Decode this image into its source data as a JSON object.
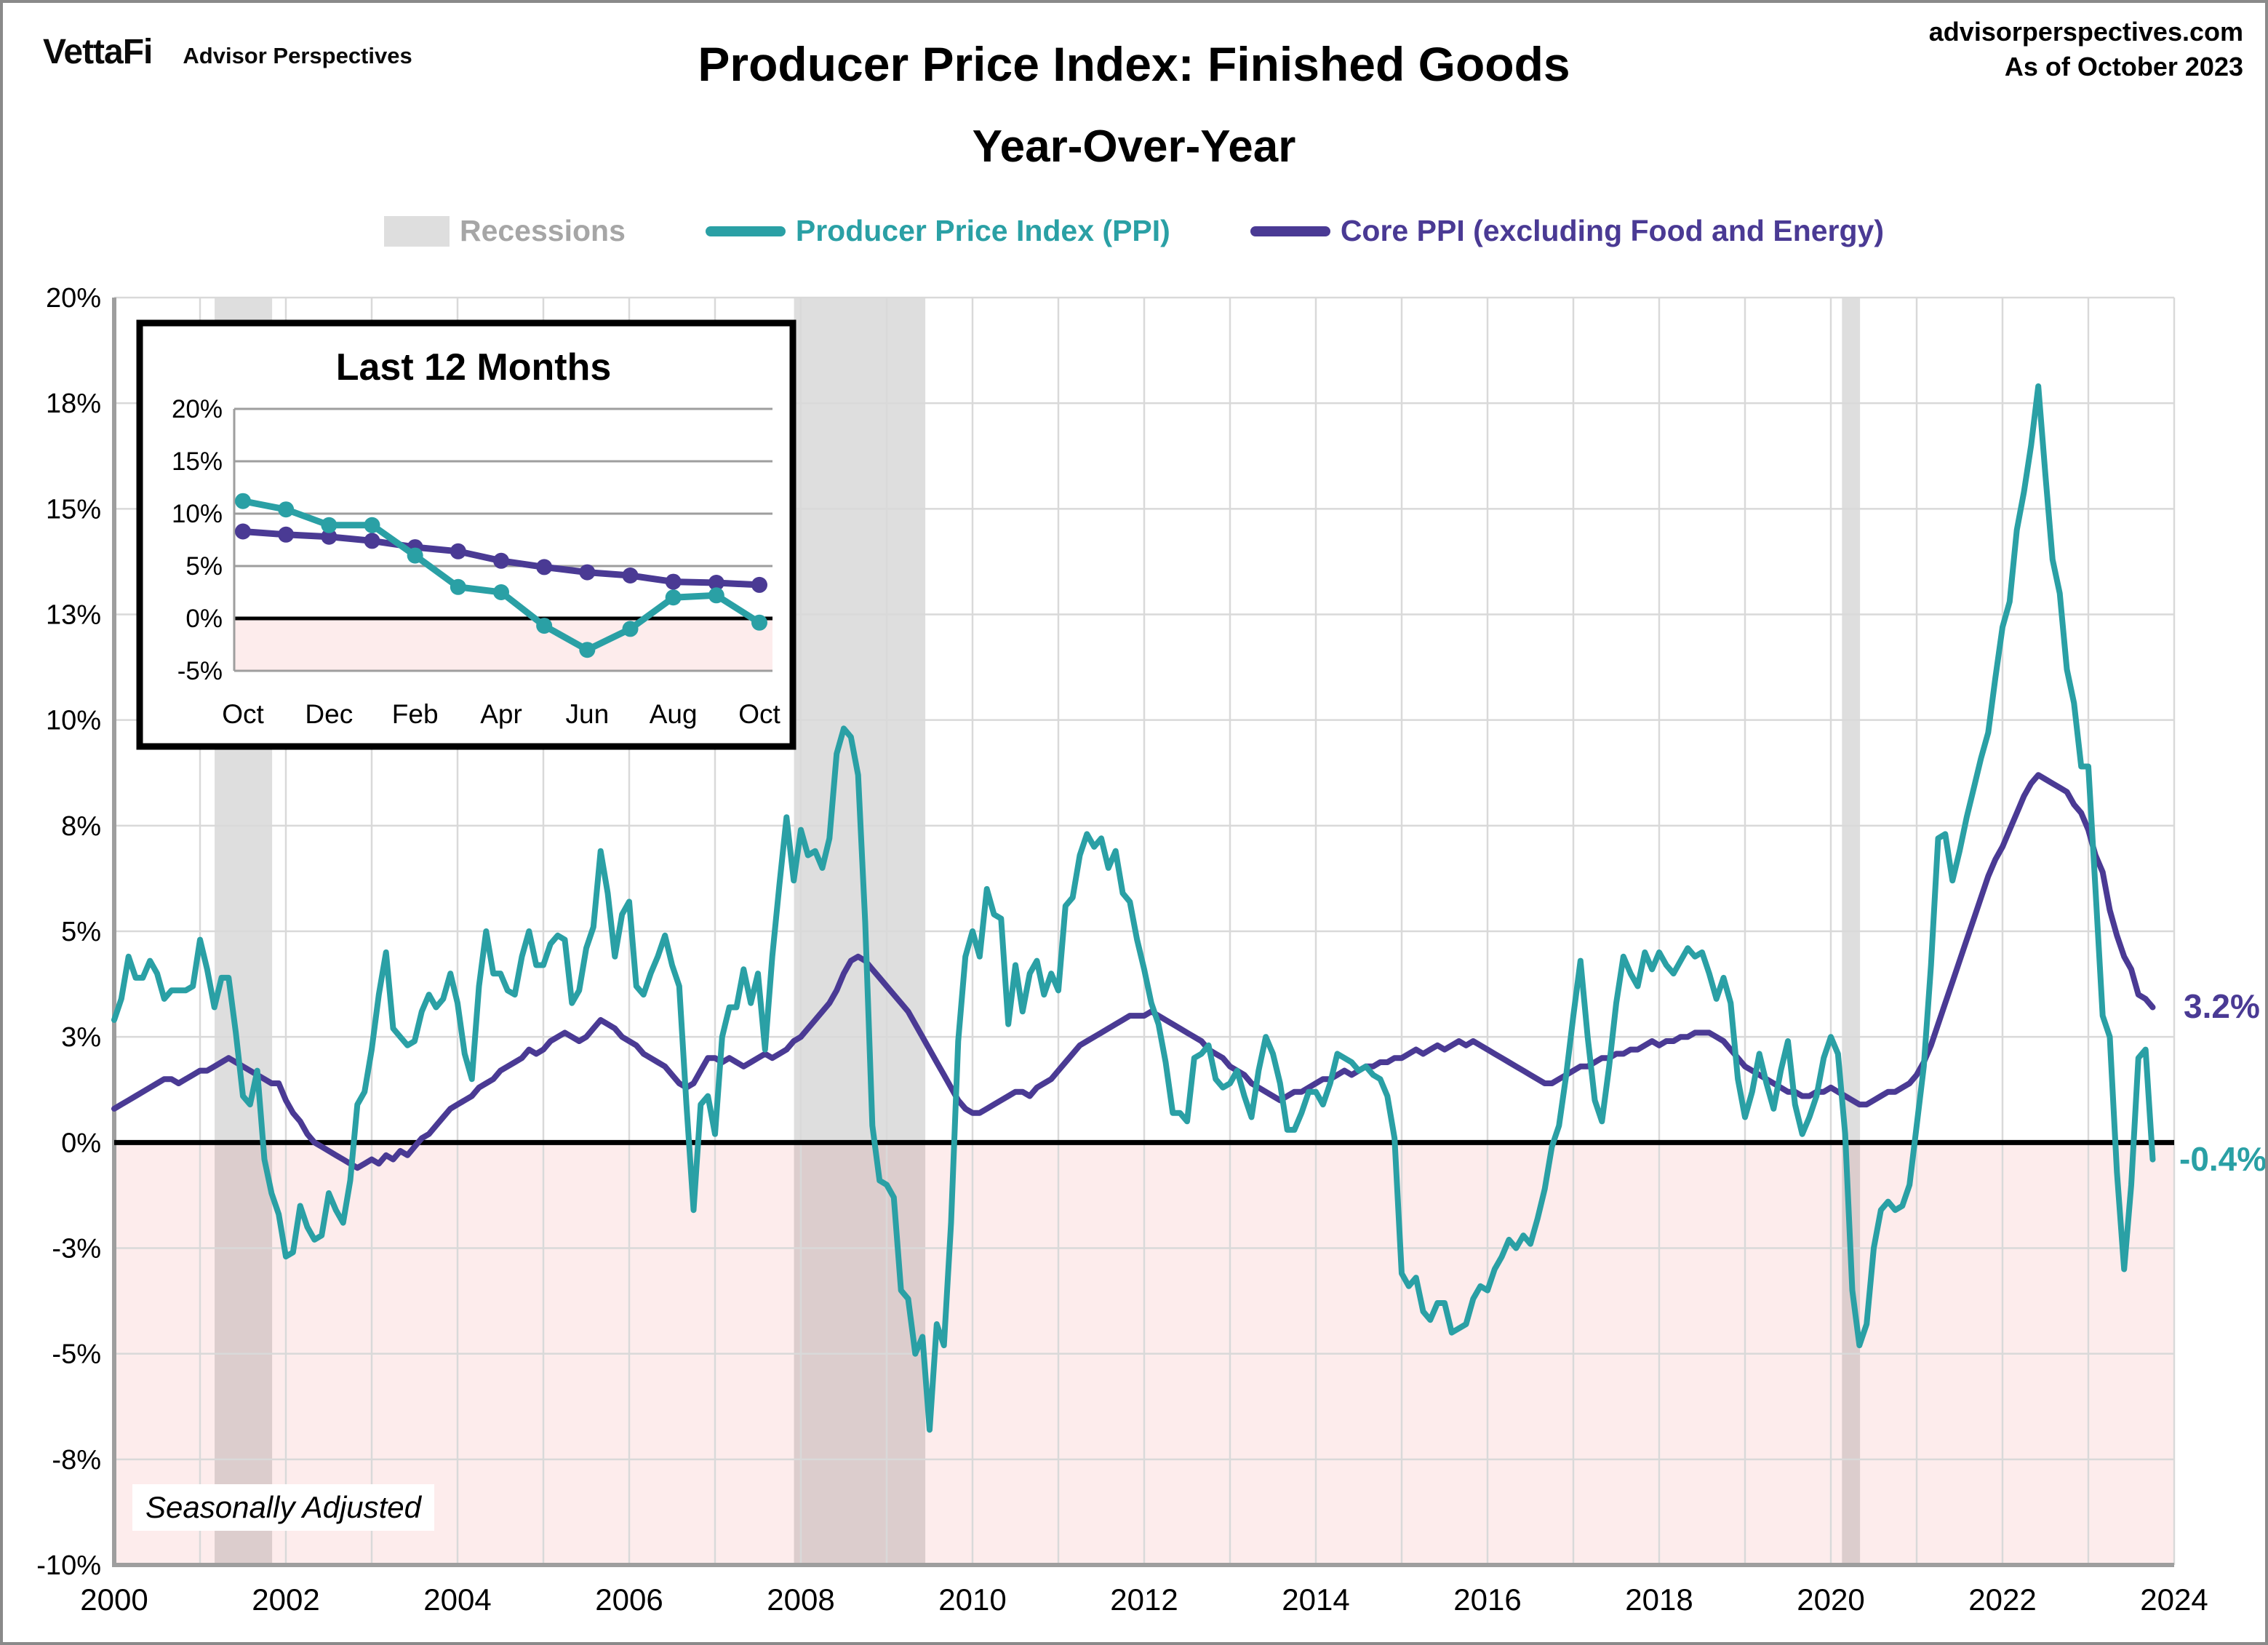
{
  "header": {
    "logo": "VettaFi",
    "logo_sub": "Advisor Perspectives",
    "title_line1": "Producer Price Index: Finished Goods",
    "title_line2": "Year-Over-Year",
    "source": "advisorperspectives.com",
    "as_of": "As of October 2023"
  },
  "legend": {
    "recessions_label": "Recessions",
    "ppi_label": "Producer Price Index (PPI)",
    "core_label": "Core PPI (excluding Food and Energy)"
  },
  "annotations": {
    "core_label": "3.2%",
    "ppi_label": "-0.4%"
  },
  "footnote": {
    "text": "Seasonally Adjusted"
  },
  "colors": {
    "ppi_teal": "#2AA0A5",
    "core_purple": "#4A3A94",
    "recession_gray": "#DEDEDE",
    "negative_pink": "#FDECEC",
    "grid": "#D9D9D9",
    "axis": "#9E9E9E",
    "zero_line": "#000000",
    "legend_gray_text": "#A6A6A6"
  },
  "chart_data": {
    "type": "line",
    "title": "Producer Price Index: Finished Goods Year-Over-Year",
    "xlabel": "",
    "ylabel": "",
    "grid": true,
    "legend_position": "top",
    "xlim": [
      2000,
      2024
    ],
    "ylim": [
      -10,
      20
    ],
    "x_unit": "monthly, Jan 2000 - Oct 2023",
    "x_ticks": [
      2000,
      2002,
      2004,
      2006,
      2008,
      2010,
      2012,
      2014,
      2016,
      2018,
      2020,
      2022,
      2024
    ],
    "y_ticks": [
      {
        "label": "20%",
        "value": 20
      },
      {
        "label": "18%",
        "value": 17.5
      },
      {
        "label": "15%",
        "value": 15
      },
      {
        "label": "13%",
        "value": 12.5
      },
      {
        "label": "10%",
        "value": 10
      },
      {
        "label": "8%",
        "value": 7.5
      },
      {
        "label": "5%",
        "value": 5
      },
      {
        "label": "3%",
        "value": 2.5
      },
      {
        "label": "0%",
        "value": 0
      },
      {
        "label": "-3%",
        "value": -2.5
      },
      {
        "label": "-5%",
        "value": -5
      },
      {
        "label": "-8%",
        "value": -7.5
      },
      {
        "label": "-10%",
        "value": -10
      }
    ],
    "recessions": [
      [
        2001.17,
        2001.84
      ],
      [
        2007.92,
        2009.45
      ],
      [
        2020.13,
        2020.34
      ]
    ],
    "series": [
      {
        "name": "Producer Price Index (PPI)",
        "color_key": "ppi_teal",
        "end_value": -0.4,
        "values": [
          2.9,
          3.4,
          4.4,
          3.9,
          3.9,
          4.3,
          4.0,
          3.4,
          3.6,
          3.6,
          3.6,
          3.7,
          4.8,
          4.1,
          3.2,
          3.9,
          3.9,
          2.6,
          1.1,
          0.9,
          1.7,
          -0.4,
          -1.2,
          -1.7,
          -2.7,
          -2.6,
          -1.5,
          -2.0,
          -2.3,
          -2.2,
          -1.2,
          -1.6,
          -1.9,
          -0.9,
          0.9,
          1.2,
          2.2,
          3.5,
          4.5,
          2.7,
          2.5,
          2.3,
          2.4,
          3.1,
          3.5,
          3.2,
          3.4,
          4.0,
          3.3,
          2.1,
          1.5,
          3.7,
          5.0,
          4.0,
          4.0,
          3.6,
          3.5,
          4.4,
          5.0,
          4.2,
          4.2,
          4.7,
          4.9,
          4.8,
          3.3,
          3.6,
          4.6,
          5.1,
          6.9,
          5.9,
          4.4,
          5.4,
          5.7,
          3.7,
          3.5,
          4.0,
          4.4,
          4.9,
          4.2,
          3.7,
          0.9,
          -1.6,
          0.9,
          1.1,
          0.2,
          2.5,
          3.2,
          3.2,
          4.1,
          3.3,
          4.0,
          2.2,
          4.4,
          6.1,
          7.7,
          6.2,
          7.4,
          6.8,
          6.9,
          6.5,
          7.2,
          9.2,
          9.8,
          9.6,
          8.7,
          5.2,
          0.4,
          -0.9,
          -1.0,
          -1.3,
          -3.5,
          -3.7,
          -5.0,
          -4.6,
          -6.8,
          -4.3,
          -4.8,
          -1.9,
          2.4,
          4.4,
          5.0,
          4.4,
          6.0,
          5.4,
          5.3,
          2.8,
          4.2,
          3.1,
          4.0,
          4.3,
          3.5,
          4.0,
          3.6,
          5.6,
          5.8,
          6.8,
          7.3,
          7.0,
          7.2,
          6.5,
          6.9,
          5.9,
          5.7,
          4.8,
          4.1,
          3.3,
          2.8,
          1.9,
          0.7,
          0.7,
          0.5,
          2.0,
          2.1,
          2.3,
          1.5,
          1.3,
          1.4,
          1.7,
          1.1,
          0.6,
          1.7,
          2.5,
          2.1,
          1.4,
          0.3,
          0.3,
          0.7,
          1.2,
          1.2,
          0.9,
          1.4,
          2.1,
          2.0,
          1.9,
          1.7,
          1.8,
          1.6,
          1.5,
          1.1,
          0.1,
          -3.1,
          -3.4,
          -3.2,
          -4.0,
          -4.2,
          -3.8,
          -3.8,
          -4.5,
          -4.4,
          -4.3,
          -3.7,
          -3.4,
          -3.5,
          -3.0,
          -2.7,
          -2.3,
          -2.5,
          -2.2,
          -2.4,
          -1.8,
          -1.1,
          -0.1,
          0.4,
          1.6,
          3.0,
          4.3,
          2.5,
          1.0,
          0.5,
          1.8,
          3.3,
          4.4,
          4.0,
          3.7,
          4.5,
          4.1,
          4.5,
          4.2,
          4.0,
          4.3,
          4.6,
          4.4,
          4.5,
          4.0,
          3.4,
          3.9,
          3.3,
          1.5,
          0.6,
          1.2,
          2.1,
          1.4,
          0.8,
          1.7,
          2.4,
          0.9,
          0.2,
          0.6,
          1.1,
          2.0,
          2.5,
          2.1,
          0.2,
          -3.5,
          -4.8,
          -4.3,
          -2.5,
          -1.6,
          -1.4,
          -1.6,
          -1.5,
          -1.0,
          0.4,
          1.8,
          4.2,
          7.2,
          7.3,
          6.2,
          6.9,
          7.7,
          8.4,
          9.1,
          9.7,
          11.0,
          12.2,
          12.8,
          14.5,
          15.4,
          16.5,
          17.9,
          15.8,
          13.8,
          13.0,
          11.2,
          10.4,
          8.9,
          8.9,
          6.0,
          3.0,
          2.5,
          -0.7,
          -3.0,
          -1.0,
          2.0,
          2.2,
          -0.4
        ]
      },
      {
        "name": "Core PPI (excluding Food and Energy)",
        "color_key": "core_purple",
        "end_value": 3.2,
        "values": [
          0.8,
          0.9,
          1.0,
          1.1,
          1.2,
          1.3,
          1.4,
          1.5,
          1.5,
          1.4,
          1.5,
          1.6,
          1.7,
          1.7,
          1.8,
          1.9,
          2.0,
          1.9,
          1.8,
          1.7,
          1.6,
          1.5,
          1.4,
          1.4,
          1.0,
          0.7,
          0.5,
          0.2,
          0.0,
          -0.1,
          -0.2,
          -0.3,
          -0.4,
          -0.5,
          -0.6,
          -0.5,
          -0.4,
          -0.5,
          -0.3,
          -0.4,
          -0.2,
          -0.3,
          -0.1,
          0.1,
          0.2,
          0.4,
          0.6,
          0.8,
          0.9,
          1.0,
          1.1,
          1.3,
          1.4,
          1.5,
          1.7,
          1.8,
          1.9,
          2.0,
          2.2,
          2.1,
          2.2,
          2.4,
          2.5,
          2.6,
          2.5,
          2.4,
          2.5,
          2.7,
          2.9,
          2.8,
          2.7,
          2.5,
          2.4,
          2.3,
          2.1,
          2.0,
          1.9,
          1.8,
          1.6,
          1.4,
          1.3,
          1.4,
          1.7,
          2.0,
          2.0,
          1.9,
          2.0,
          1.9,
          1.8,
          1.9,
          2.0,
          2.1,
          2.0,
          2.1,
          2.2,
          2.4,
          2.5,
          2.7,
          2.9,
          3.1,
          3.3,
          3.6,
          4.0,
          4.3,
          4.4,
          4.3,
          4.1,
          3.9,
          3.7,
          3.5,
          3.3,
          3.1,
          2.8,
          2.5,
          2.2,
          1.9,
          1.6,
          1.3,
          1.0,
          0.8,
          0.7,
          0.7,
          0.8,
          0.9,
          1.0,
          1.1,
          1.2,
          1.2,
          1.1,
          1.3,
          1.4,
          1.5,
          1.7,
          1.9,
          2.1,
          2.3,
          2.4,
          2.5,
          2.6,
          2.7,
          2.8,
          2.9,
          3.0,
          3.0,
          3.0,
          3.1,
          3.0,
          2.9,
          2.8,
          2.7,
          2.6,
          2.5,
          2.4,
          2.2,
          2.1,
          2.0,
          1.8,
          1.7,
          1.6,
          1.4,
          1.3,
          1.2,
          1.1,
          1.0,
          1.1,
          1.2,
          1.2,
          1.3,
          1.4,
          1.5,
          1.5,
          1.6,
          1.7,
          1.6,
          1.7,
          1.8,
          1.8,
          1.9,
          1.9,
          2.0,
          2.0,
          2.1,
          2.2,
          2.1,
          2.2,
          2.3,
          2.2,
          2.3,
          2.4,
          2.3,
          2.4,
          2.3,
          2.2,
          2.1,
          2.0,
          1.9,
          1.8,
          1.7,
          1.6,
          1.5,
          1.4,
          1.4,
          1.5,
          1.6,
          1.7,
          1.8,
          1.8,
          1.9,
          2.0,
          2.0,
          2.1,
          2.1,
          2.2,
          2.2,
          2.3,
          2.4,
          2.3,
          2.4,
          2.4,
          2.5,
          2.5,
          2.6,
          2.6,
          2.6,
          2.5,
          2.4,
          2.2,
          2.0,
          1.8,
          1.7,
          1.6,
          1.5,
          1.4,
          1.3,
          1.2,
          1.2,
          1.1,
          1.1,
          1.2,
          1.2,
          1.3,
          1.2,
          1.1,
          1.0,
          0.9,
          0.9,
          1.0,
          1.1,
          1.2,
          1.2,
          1.3,
          1.4,
          1.6,
          1.9,
          2.3,
          2.8,
          3.3,
          3.8,
          4.3,
          4.8,
          5.3,
          5.8,
          6.3,
          6.7,
          7.0,
          7.4,
          7.8,
          8.2,
          8.5,
          8.7,
          8.6,
          8.5,
          8.4,
          8.3,
          8.0,
          7.8,
          7.4,
          6.8,
          6.4,
          5.5,
          4.9,
          4.4,
          4.1,
          3.5,
          3.4,
          3.2
        ]
      }
    ],
    "inset": {
      "title": "Last 12 Months",
      "ylim": [
        -5,
        20
      ],
      "y_ticks": [
        {
          "label": "20%",
          "value": 20
        },
        {
          "label": "15%",
          "value": 15
        },
        {
          "label": "10%",
          "value": 10
        },
        {
          "label": "5%",
          "value": 5
        },
        {
          "label": "0%",
          "value": 0
        },
        {
          "label": "-5%",
          "value": -5
        }
      ],
      "months": [
        "Oct",
        "Nov",
        "Dec",
        "Jan",
        "Feb",
        "Mar",
        "Apr",
        "May",
        "Jun",
        "Jul",
        "Aug",
        "Sep",
        "Oct"
      ],
      "x_labels_shown": [
        "Oct",
        "Dec",
        "Feb",
        "Apr",
        "Jun",
        "Aug",
        "Oct"
      ],
      "ppi_values": [
        11.2,
        10.4,
        8.9,
        8.9,
        6.0,
        3.0,
        2.5,
        -0.7,
        -3.0,
        -1.0,
        2.0,
        2.2,
        -0.4
      ],
      "core_values": [
        8.3,
        8.0,
        7.8,
        7.4,
        6.8,
        6.4,
        5.5,
        4.9,
        4.4,
        4.1,
        3.5,
        3.4,
        3.2
      ]
    }
  }
}
